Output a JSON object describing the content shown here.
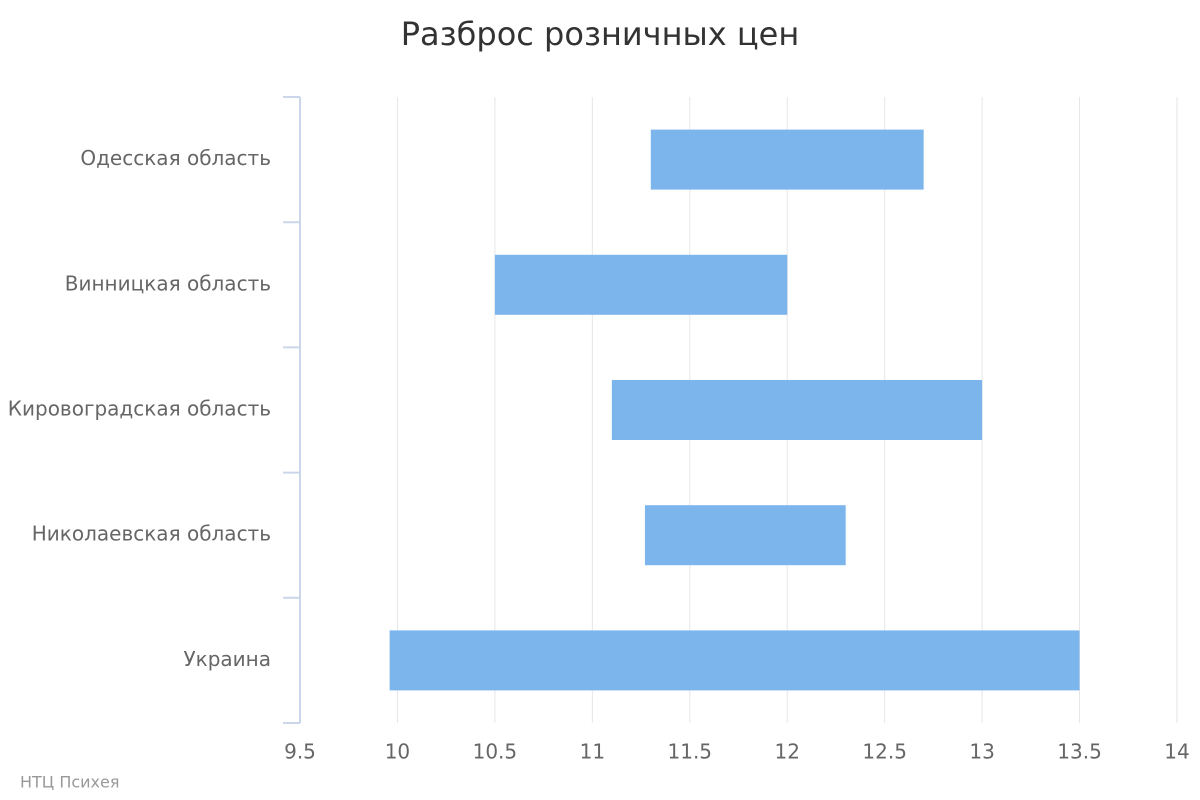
{
  "chart_data": {
    "type": "columnrange",
    "title": "Разброс розничных цен",
    "categories": [
      "Одесская область",
      "Винницкая область",
      "Кировоградская область",
      "Николаевская область",
      "Украина"
    ],
    "low": [
      11.3,
      10.5,
      11.1,
      11.27,
      9.96
    ],
    "high": [
      12.7,
      12,
      13,
      12.3,
      13.5
    ],
    "color": "#7cb5ec",
    "xlim": [
      9.5,
      14
    ],
    "xticks": [
      9.5,
      10,
      10.5,
      11,
      11.5,
      12,
      12.5,
      13,
      13.5,
      14
    ],
    "grid": true,
    "credits": "НТЦ Психея"
  }
}
